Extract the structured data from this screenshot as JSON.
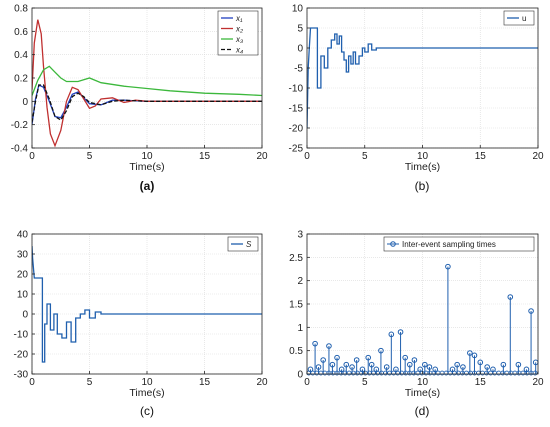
{
  "chart_data": [
    {
      "id": "a",
      "type": "line",
      "caption": "(a)",
      "xlabel": "Time(s)",
      "ylabel": "",
      "xlim": [
        0,
        20
      ],
      "ylim": [
        -0.4,
        0.8
      ],
      "xticks": [
        0,
        5,
        10,
        15,
        20
      ],
      "yticks": [
        -0.4,
        -0.2,
        0,
        0.2,
        0.4,
        0.6,
        0.8
      ],
      "grid": true,
      "legend": "top-right",
      "series": [
        {
          "name": "x₁",
          "color": "#1f3fbf",
          "dash": "",
          "x": [
            0,
            0.3,
            0.6,
            1.0,
            1.5,
            2.0,
            2.5,
            3.0,
            3.5,
            4.0,
            4.5,
            5.0,
            6.0,
            7.0,
            8.0,
            10.0,
            12.0,
            15.0,
            20.0
          ],
          "y": [
            -0.2,
            0.02,
            0.14,
            0.12,
            0.0,
            -0.13,
            -0.14,
            -0.05,
            0.06,
            0.08,
            0.03,
            -0.02,
            -0.03,
            0.01,
            0.01,
            0.0,
            0.0,
            0.0,
            0.0
          ]
        },
        {
          "name": "x₂",
          "color": "#c03030",
          "dash": "",
          "x": [
            0,
            0.2,
            0.5,
            0.8,
            1.0,
            1.3,
            1.6,
            2.0,
            2.5,
            3.0,
            3.5,
            4.0,
            4.5,
            5.0,
            5.5,
            6.0,
            7.0,
            8.0,
            9.0,
            10.0,
            12.0,
            15.0,
            20.0
          ],
          "y": [
            0.1,
            0.5,
            0.7,
            0.58,
            0.3,
            -0.05,
            -0.28,
            -0.38,
            -0.25,
            0.0,
            0.12,
            0.1,
            0.02,
            -0.06,
            -0.04,
            0.02,
            0.03,
            -0.01,
            0.01,
            0.0,
            0.0,
            0.0,
            0.0
          ]
        },
        {
          "name": "x₃",
          "color": "#3cb83c",
          "dash": "",
          "x": [
            0,
            0.5,
            1.0,
            1.5,
            2.0,
            2.5,
            3.0,
            4.0,
            5.0,
            6.0,
            8.0,
            10.0,
            12.0,
            15.0,
            18.0,
            20.0
          ],
          "y": [
            0.05,
            0.18,
            0.27,
            0.3,
            0.25,
            0.2,
            0.17,
            0.17,
            0.2,
            0.16,
            0.13,
            0.11,
            0.09,
            0.07,
            0.06,
            0.05
          ]
        },
        {
          "name": "x₄",
          "color": "#111111",
          "dash": "4,2",
          "x": [
            0,
            0.3,
            0.6,
            1.0,
            1.5,
            2.0,
            2.5,
            3.0,
            3.5,
            4.0,
            4.5,
            5.0,
            6.0,
            7.0,
            8.0,
            10.0,
            12.0,
            15.0,
            20.0
          ],
          "y": [
            -0.18,
            0.0,
            0.14,
            0.14,
            0.02,
            -0.13,
            -0.16,
            -0.08,
            0.04,
            0.07,
            0.04,
            -0.01,
            -0.03,
            0.0,
            0.01,
            0.0,
            0.0,
            0.0,
            0.0
          ]
        }
      ]
    },
    {
      "id": "b",
      "type": "line",
      "caption": "(b)",
      "xlabel": "Time(s)",
      "ylabel": "",
      "xlim": [
        0,
        20
      ],
      "ylim": [
        -25,
        10
      ],
      "xticks": [
        0,
        5,
        10,
        15,
        20
      ],
      "yticks": [
        -25,
        -20,
        -15,
        -10,
        -5,
        0,
        5,
        10
      ],
      "grid": true,
      "legend": "top-right",
      "series": [
        {
          "name": "u",
          "color": "#1f5fae",
          "dash": "",
          "x": [
            0,
            0.1,
            0.2,
            0.3,
            0.3,
            0.9,
            0.9,
            1.2,
            1.2,
            1.5,
            1.5,
            1.8,
            1.8,
            2.1,
            2.1,
            2.4,
            2.4,
            2.6,
            2.6,
            2.8,
            2.8,
            3.0,
            3.0,
            3.2,
            3.2,
            3.4,
            3.4,
            3.6,
            3.6,
            3.8,
            3.8,
            4.0,
            4.0,
            4.2,
            4.2,
            4.5,
            4.5,
            4.8,
            4.8,
            5.0,
            5.0,
            5.3,
            5.3,
            5.6,
            5.6,
            6.0,
            6.0,
            20.0
          ],
          "y": [
            -20,
            -5,
            0,
            5,
            5,
            5,
            -10,
            -10,
            -2,
            -2,
            -5,
            -5,
            0,
            0,
            2,
            2,
            3.5,
            3.5,
            1,
            1,
            3,
            3,
            -1,
            -1,
            -3,
            -3,
            -6,
            -6,
            -2,
            -2,
            -4,
            -4,
            -1,
            -1,
            -4,
            -4,
            -2,
            -2,
            0,
            0,
            -1,
            -1,
            1,
            1,
            -0.5,
            -0.5,
            0,
            0
          ]
        }
      ]
    },
    {
      "id": "c",
      "type": "line",
      "caption": "(c)",
      "xlabel": "Time(s)",
      "ylabel": "",
      "xlim": [
        0,
        20
      ],
      "ylim": [
        -30,
        40
      ],
      "xticks": [
        0,
        5,
        10,
        15,
        20
      ],
      "yticks": [
        -30,
        -20,
        -10,
        0,
        10,
        20,
        30,
        40
      ],
      "grid": true,
      "legend": "top-right",
      "series": [
        {
          "name": "S",
          "color": "#1f5fae",
          "dash": "",
          "x": [
            0,
            0.05,
            0.2,
            0.2,
            0.9,
            0.9,
            1.1,
            1.1,
            1.3,
            1.3,
            1.6,
            1.6,
            1.9,
            1.9,
            2.2,
            2.2,
            2.6,
            2.6,
            3.0,
            3.0,
            3.4,
            3.4,
            3.8,
            3.8,
            4.2,
            4.2,
            4.6,
            4.6,
            5.0,
            5.0,
            5.5,
            5.5,
            6.0,
            6.0,
            20.0
          ],
          "y": [
            34,
            28,
            18,
            18,
            18,
            -24,
            -24,
            -5,
            -5,
            5,
            5,
            -8,
            -8,
            0,
            0,
            -10,
            -10,
            -12,
            -12,
            -4,
            -4,
            -14,
            -14,
            -2,
            -2,
            0,
            0,
            2,
            2,
            -2,
            -2,
            1,
            1,
            0,
            0
          ]
        }
      ]
    },
    {
      "id": "d",
      "type": "scatter",
      "caption": "(d)",
      "xlabel": "Time(s)",
      "ylabel": "",
      "xlim": [
        0,
        20
      ],
      "ylim": [
        0,
        3
      ],
      "xticks": [
        0,
        5,
        10,
        15,
        20
      ],
      "yticks": [
        0,
        0.5,
        1,
        1.5,
        2,
        2.5,
        3
      ],
      "grid": true,
      "legend": "top-right",
      "series": [
        {
          "name": "Inter-event sampling times",
          "color": "#1f5fae",
          "dash": "",
          "stem": true,
          "x": [
            0.3,
            0.7,
            1.0,
            1.4,
            1.9,
            2.2,
            2.6,
            3.0,
            3.4,
            3.9,
            4.3,
            4.8,
            5.3,
            5.6,
            6.0,
            6.4,
            6.9,
            7.3,
            7.7,
            8.1,
            8.5,
            8.9,
            9.3,
            9.8,
            10.2,
            10.6,
            11.1,
            12.2,
            12.6,
            13.0,
            13.5,
            14.1,
            14.5,
            15.0,
            15.6,
            16.1,
            17.0,
            17.6,
            18.3,
            19.0,
            19.4,
            19.8
          ],
          "y": [
            0.1,
            0.65,
            0.15,
            0.3,
            0.6,
            0.2,
            0.35,
            0.1,
            0.2,
            0.15,
            0.3,
            0.1,
            0.35,
            0.2,
            0.1,
            0.5,
            0.15,
            0.85,
            0.1,
            0.9,
            0.35,
            0.2,
            0.3,
            0.1,
            0.2,
            0.15,
            0.1,
            2.3,
            0.1,
            0.2,
            0.15,
            0.45,
            0.4,
            0.25,
            0.15,
            0.1,
            0.2,
            1.65,
            0.2,
            0.1,
            1.35,
            0.25
          ]
        }
      ]
    }
  ]
}
